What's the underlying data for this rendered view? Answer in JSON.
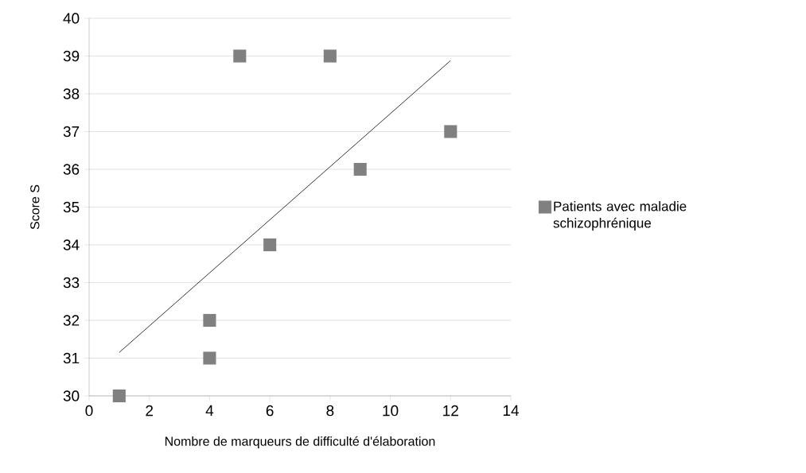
{
  "chart_data": {
    "type": "scatter",
    "xlabel": "Nombre de marqueurs de difficulté d'élaboration",
    "ylabel": "Score S",
    "series": [
      {
        "name": "Patients avec maladie schizophrénique",
        "color": "#808080",
        "marker": "square",
        "x": [
          1,
          4,
          4,
          5,
          6,
          8,
          9,
          12
        ],
        "values": [
          30,
          31,
          32,
          39,
          34,
          39,
          36,
          37
        ]
      },
      {
        "type": "line",
        "color": "#000000",
        "marker": "none",
        "x": [
          1,
          12
        ],
        "values": [
          31.15,
          38.88
        ]
      }
    ],
    "xlim": [
      0,
      14
    ],
    "xticks": [
      0,
      2,
      4,
      6,
      8,
      10,
      12,
      14
    ],
    "ylim": [
      30,
      40
    ],
    "yticks": [
      30,
      31,
      32,
      33,
      34,
      35,
      36,
      37,
      38,
      39,
      40
    ],
    "grid": "y",
    "legend": "right"
  }
}
